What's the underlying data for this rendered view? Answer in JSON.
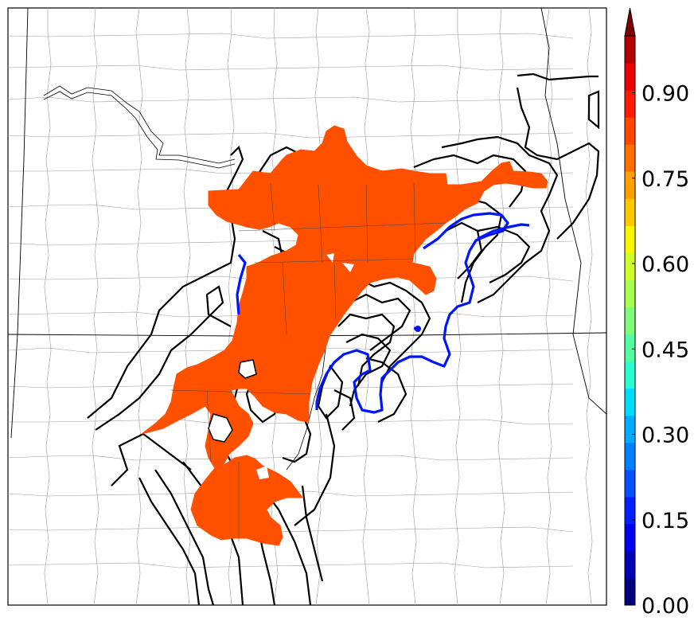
{
  "colorbar": {
    "ticks": [
      "0.00",
      "0.15",
      "0.30",
      "0.45",
      "0.60",
      "0.75",
      "0.90"
    ],
    "tick_values": [
      0.0,
      0.15,
      0.3,
      0.45,
      0.6,
      0.75,
      0.9
    ],
    "range": [
      0.0,
      1.0
    ],
    "bands": [
      "#00007f",
      "#0000b5",
      "#0000ef",
      "#0020ff",
      "#0050ff",
      "#0080ff",
      "#00acff",
      "#00dcfe",
      "#29ffce",
      "#54ffa4",
      "#7dff79",
      "#a7ff50",
      "#ceff29",
      "#f8f500",
      "#ffc800",
      "#ff9e00",
      "#ff7000",
      "#ff4700",
      "#ff1a00",
      "#e90000",
      "#b20000"
    ],
    "extend": "max",
    "extend_color": "#7f0000"
  },
  "map": {
    "fill_color": "#ff5000",
    "contour_color": "#000000",
    "highlight_contour_color": "#0015ff"
  }
}
